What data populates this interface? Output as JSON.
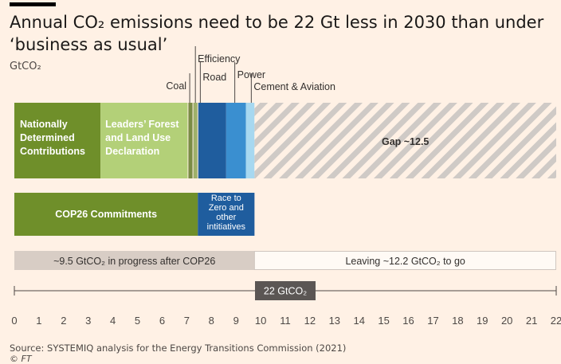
{
  "title": "Annual CO₂ emissions need to be 22 Gt less in 2030 than under ‘business as usual’",
  "unit": "GtCO₂",
  "source": "Source: SYSTEMIQ analysis for the Energy Transitions Commission (2021)",
  "credit": "© FT",
  "colors": {
    "background": "#fff1e5",
    "ndc": "#6f8f2a",
    "leaders": "#b3d078",
    "coal": "#7a8b45",
    "efficiency": "#9eb06a",
    "road": "#1f5d9e",
    "power": "#3a8fd0",
    "cement_aviation": "#a7d8f0",
    "gap_hatch": "#cfcac6",
    "cop26": "#6f8f2a",
    "race_to_zero": "#1f5d9e",
    "in_progress": "#d8cdc5",
    "dark_box": "#5b5654"
  },
  "chart_data": {
    "type": "bar",
    "orientation": "horizontal",
    "xlim": [
      0,
      22
    ],
    "xticks": [
      0,
      1,
      2,
      3,
      4,
      5,
      6,
      7,
      8,
      9,
      10,
      11,
      12,
      13,
      14,
      15,
      16,
      17,
      18,
      19,
      20,
      21,
      22
    ],
    "ylabel": "GtCO₂",
    "rows": [
      {
        "segments": [
          {
            "key": "ndc",
            "label": "Nationally\nDetermined\nContributions",
            "start": 0,
            "end": 3.5,
            "label_pos": "inside"
          },
          {
            "key": "leaders",
            "label": "Leaders’ Forest\nand Land Use\nDeclaration",
            "start": 3.5,
            "end": 7.05,
            "label_pos": "inside"
          },
          {
            "key": "coal",
            "label": "Coal",
            "start": 7.05,
            "end": 7.25,
            "label_pos": "above"
          },
          {
            "key": "efficiency",
            "label": "Efficiency",
            "start": 7.25,
            "end": 7.45,
            "label_pos": "above"
          },
          {
            "key": "road",
            "label": "Road",
            "start": 7.45,
            "end": 8.6,
            "label_pos": "above"
          },
          {
            "key": "power",
            "label": "Power",
            "start": 8.6,
            "end": 9.4,
            "label_pos": "above"
          },
          {
            "key": "cement_aviation",
            "label": "Cement & Aviation",
            "start": 9.4,
            "end": 9.75,
            "label_pos": "above"
          },
          {
            "key": "gap",
            "label": "Gap ~12.5",
            "start": 9.75,
            "end": 22,
            "label_pos": "inside",
            "hatched": true
          }
        ]
      },
      {
        "segments": [
          {
            "key": "cop26",
            "label": "COP26 Commitments",
            "start": 0,
            "end": 7.45,
            "label_pos": "inside"
          },
          {
            "key": "race_to_zero",
            "label": "Race to\nZero and\nother\nintitiatives",
            "start": 7.45,
            "end": 9.75,
            "label_pos": "inside"
          }
        ]
      },
      {
        "segments": [
          {
            "key": "in_progress",
            "label": "~9.5 GtCO₂ in progress after COP26",
            "start": 0,
            "end": 9.75
          },
          {
            "key": "to_go",
            "label": "Leaving ~12.2 GtCO₂ to go",
            "start": 9.75,
            "end": 22
          }
        ]
      }
    ],
    "total": {
      "label": "22 GtCO₂",
      "start": 0,
      "end": 22
    }
  }
}
